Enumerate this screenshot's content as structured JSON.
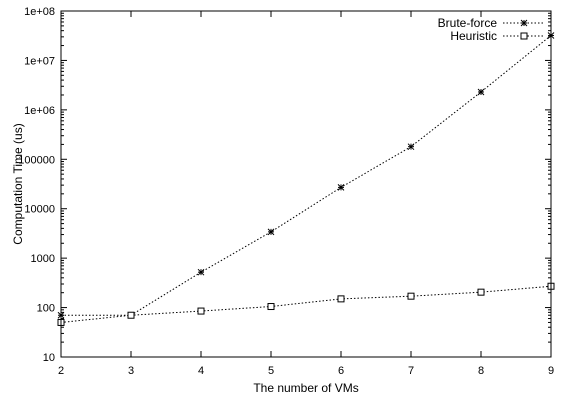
{
  "chart_data": {
    "type": "line",
    "title": "",
    "xlabel": "The number of VMs",
    "ylabel": "Computation Time (us)",
    "x": [
      2,
      3,
      4,
      5,
      6,
      7,
      8,
      9
    ],
    "xlim": [
      2,
      9
    ],
    "ylim": [
      10,
      100000000
    ],
    "yscale": "log",
    "x_ticks": [
      "2",
      "3",
      "4",
      "5",
      "6",
      "7",
      "8",
      "9"
    ],
    "y_ticks": [
      "10",
      "100",
      "1000",
      "10000",
      "100000",
      "1e+06",
      "1e+07",
      "1e+08"
    ],
    "grid": false,
    "legend_position": "top-right",
    "series": [
      {
        "name": "Brute-force",
        "marker": "asterisk",
        "line_style": "dotted",
        "values": [
          70,
          70,
          520,
          3400,
          27000,
          180000,
          2300000,
          32000000
        ]
      },
      {
        "name": "Heuristic",
        "marker": "square",
        "line_style": "dotted",
        "values": [
          50,
          70,
          85,
          105,
          150,
          170,
          205,
          270
        ]
      }
    ]
  }
}
